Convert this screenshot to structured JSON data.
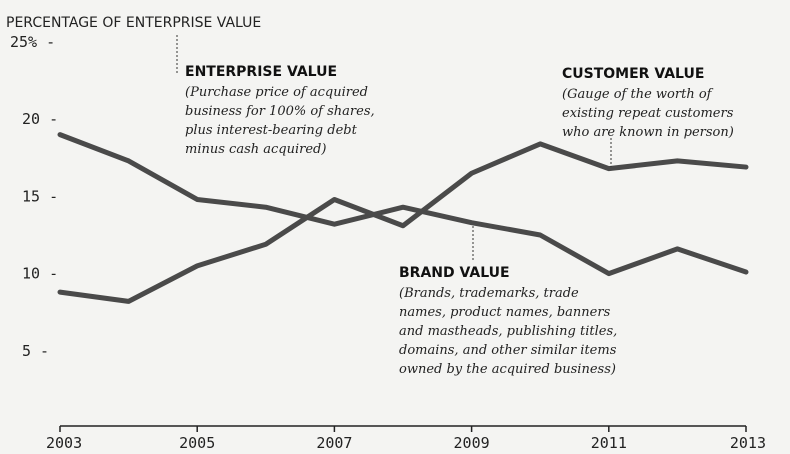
{
  "chart_data": {
    "type": "line",
    "title": "",
    "ylabel": "PERCENTAGE OF ENTERPRISE VALUE",
    "xlabel": "",
    "ylim": [
      0,
      25
    ],
    "yticks": [
      {
        "value": 25,
        "label": "25% -"
      },
      {
        "value": 20,
        "label": "20 -"
      },
      {
        "value": 15,
        "label": "15 -"
      },
      {
        "value": 10,
        "label": "10 -"
      },
      {
        "value": 5,
        "label": "5 -"
      }
    ],
    "x": [
      2003,
      2004,
      2005,
      2006,
      2007,
      2008,
      2009,
      2010,
      2011,
      2012,
      2013
    ],
    "xticks": [
      "2003",
      "2005",
      "2007",
      "2009",
      "2011",
      "2013"
    ],
    "grid": false,
    "series": [
      {
        "name": "CUSTOMER VALUE",
        "values": [
          8.8,
          8.2,
          10.5,
          11.9,
          14.8,
          13.1,
          16.5,
          18.4,
          16.8,
          17.3,
          16.9
        ]
      },
      {
        "name": "BRAND VALUE",
        "values": [
          19.0,
          17.3,
          14.8,
          14.3,
          13.2,
          14.3,
          13.3,
          12.5,
          10.0,
          11.6,
          10.1
        ]
      }
    ],
    "annotations": [
      {
        "id": "enterprise",
        "title": "ENTERPRISE VALUE",
        "lines": [
          "(Purchase price of acquired",
          "business for 100% of shares,",
          "plus interest-bearing debt",
          "minus cash acquired)"
        ]
      },
      {
        "id": "customer",
        "title": "CUSTOMER VALUE",
        "lines": [
          "(Gauge of the worth of",
          "existing repeat customers",
          "who are known in person)"
        ]
      },
      {
        "id": "brand",
        "title": "BRAND VALUE",
        "lines": [
          "(Brands, trademarks, trade",
          "names, product names, banners",
          "and mastheads, publishing titles,",
          "domains, and other similar items",
          "owned by the acquired business)"
        ]
      }
    ]
  }
}
